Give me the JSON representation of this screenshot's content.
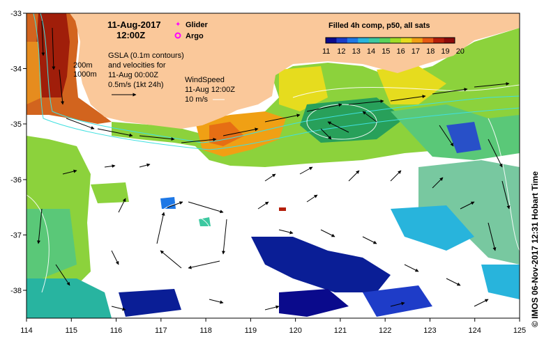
{
  "title": {
    "date": "11-Aug-2017",
    "time": "12:00Z"
  },
  "legend": {
    "glider": "Glider",
    "argo": "Argo",
    "glider_color": "#ff00ff",
    "argo_color": "#ff00ff"
  },
  "colorbar": {
    "title": "Filled 4h comp, p50, all sats",
    "ticks": [
      "11",
      "12",
      "13",
      "14",
      "15",
      "16",
      "17",
      "18",
      "19",
      "20"
    ],
    "colors": [
      "#0a0a8c",
      "#1a3cc8",
      "#1e78e6",
      "#28b4dc",
      "#3cc8a0",
      "#5ad25a",
      "#a0dc28",
      "#e6dc1e",
      "#f0a014",
      "#e65a14",
      "#b41e0a",
      "#8c0a0a"
    ]
  },
  "annotations": {
    "contours_label": [
      "200m",
      "1000m"
    ],
    "gsla_label": [
      "GSLA (0.1m contours)",
      "and velocities for",
      "11-Aug 00:00Z",
      "0.5m/s (1kt 24h)"
    ],
    "wind_label": [
      "WindSpeed",
      "11-Aug 12:00Z",
      "10 m/s"
    ]
  },
  "axes": {
    "lon_ticks": [
      "114",
      "115",
      "116",
      "117",
      "118",
      "119",
      "120",
      "121",
      "122",
      "123",
      "124",
      "125"
    ],
    "lat_ticks": [
      "-33",
      "-34",
      "-35",
      "-36",
      "-37",
      "-38"
    ]
  },
  "credit": "© IMOS 06-Nov-2017 12:31 Hobart Time",
  "colors": {
    "land": "#fac89a",
    "contour": "#ffffff",
    "shelf_contour": "#40e0e0"
  }
}
